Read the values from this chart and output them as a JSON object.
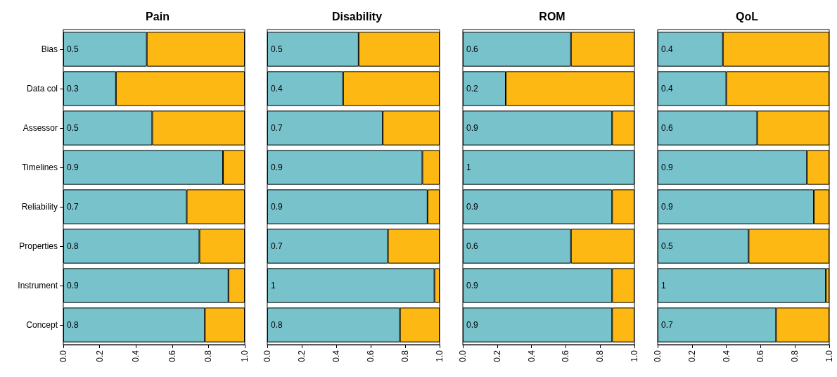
{
  "chart_data": [
    {
      "type": "bar",
      "title": "Pain",
      "orientation": "horizontal",
      "stacked": true,
      "categories": [
        "Bias",
        "Data col",
        "Assessor",
        "Timelines",
        "Reliability",
        "Properties",
        "Instrument",
        "Concept"
      ],
      "xlim": [
        0,
        1
      ],
      "xticks": [
        {
          "value": 0,
          "label": "0.0"
        },
        {
          "value": 0.2,
          "label": "0.2"
        },
        {
          "value": 0.4,
          "label": "0.4"
        },
        {
          "value": 0.6,
          "label": "0.6"
        },
        {
          "value": 0.8,
          "label": "0.8"
        },
        {
          "value": 1,
          "label": "1.0"
        }
      ],
      "series": [
        {
          "color": "#78c2cc",
          "values": [
            0.46,
            0.29,
            0.49,
            0.88,
            0.68,
            0.75,
            0.91,
            0.78
          ],
          "value_labels": [
            "0.5",
            "0.3",
            "0.5",
            "0.9",
            "0.7",
            "0.8",
            "0.9",
            "0.8"
          ]
        },
        {
          "color": "#fdb813",
          "values": [
            0.54,
            0.71,
            0.51,
            0.12,
            0.32,
            0.25,
            0.09,
            0.22
          ]
        }
      ]
    },
    {
      "type": "bar",
      "title": "Disability",
      "orientation": "horizontal",
      "stacked": true,
      "tick_labels": "x",
      "xlim": [
        0,
        1
      ],
      "xticks": [
        {
          "value": 0,
          "label": "0.0"
        },
        {
          "value": 0.2,
          "label": "0.2"
        },
        {
          "value": 0.4,
          "label": "0.4"
        },
        {
          "value": 0.6,
          "label": "0.6"
        },
        {
          "value": 0.8,
          "label": "0.8"
        },
        {
          "value": 1,
          "label": "1.0"
        }
      ],
      "series": [
        {
          "color": "#78c2cc",
          "values": [
            0.53,
            0.44,
            0.67,
            0.9,
            0.93,
            0.7,
            0.97,
            0.77
          ],
          "value_labels": [
            "0.5",
            "0.4",
            "0.7",
            "0.9",
            "0.9",
            "0.7",
            "1",
            "0.8"
          ]
        },
        {
          "color": "#fdb813",
          "values": [
            0.47,
            0.56,
            0.33,
            0.1,
            0.07,
            0.3,
            0.03,
            0.23
          ]
        }
      ]
    },
    {
      "type": "bar",
      "title": "ROM",
      "orientation": "horizontal",
      "stacked": true,
      "tick_labels": "x",
      "xlim": [
        0,
        1
      ],
      "xticks": [
        {
          "value": 0,
          "label": "0.0"
        },
        {
          "value": 0.2,
          "label": "0.2"
        },
        {
          "value": 0.4,
          "label": "0.4"
        },
        {
          "value": 0.6,
          "label": "0.6"
        },
        {
          "value": 0.8,
          "label": "0.8"
        },
        {
          "value": 1,
          "label": "1.0"
        }
      ],
      "series": [
        {
          "color": "#78c2cc",
          "values": [
            0.63,
            0.25,
            0.87,
            1,
            0.87,
            0.63,
            0.87,
            0.87
          ],
          "value_labels": [
            "0.6",
            "0.2",
            "0.9",
            "1",
            "0.9",
            "0.6",
            "0.9",
            "0.9"
          ]
        },
        {
          "color": "#fdb813",
          "values": [
            0.37,
            0.75,
            0.13,
            null,
            0.13,
            0.37,
            0.13,
            0.13
          ]
        }
      ]
    },
    {
      "type": "bar",
      "title": "QoL",
      "orientation": "horizontal",
      "stacked": true,
      "tick_labels": "x",
      "xlim": [
        0,
        1
      ],
      "xticks": [
        {
          "value": 0,
          "label": "0.0"
        },
        {
          "value": 0.2,
          "label": "0.2"
        },
        {
          "value": 0.4,
          "label": "0.4"
        },
        {
          "value": 0.6,
          "label": "0.6"
        },
        {
          "value": 0.8,
          "label": "0.8"
        },
        {
          "value": 1,
          "label": "1.0"
        }
      ],
      "series": [
        {
          "color": "#78c2cc",
          "values": [
            0.38,
            0.4,
            0.58,
            0.87,
            0.91,
            0.53,
            0.98,
            0.69
          ],
          "value_labels": [
            "0.4",
            "0.4",
            "0.6",
            "0.9",
            "0.9",
            "0.5",
            "1",
            "0.7"
          ]
        },
        {
          "color": "#fdb813",
          "values": [
            0.62,
            0.6,
            0.42,
            0.13,
            0.09,
            0.47,
            0.02,
            0.31
          ]
        }
      ]
    }
  ]
}
